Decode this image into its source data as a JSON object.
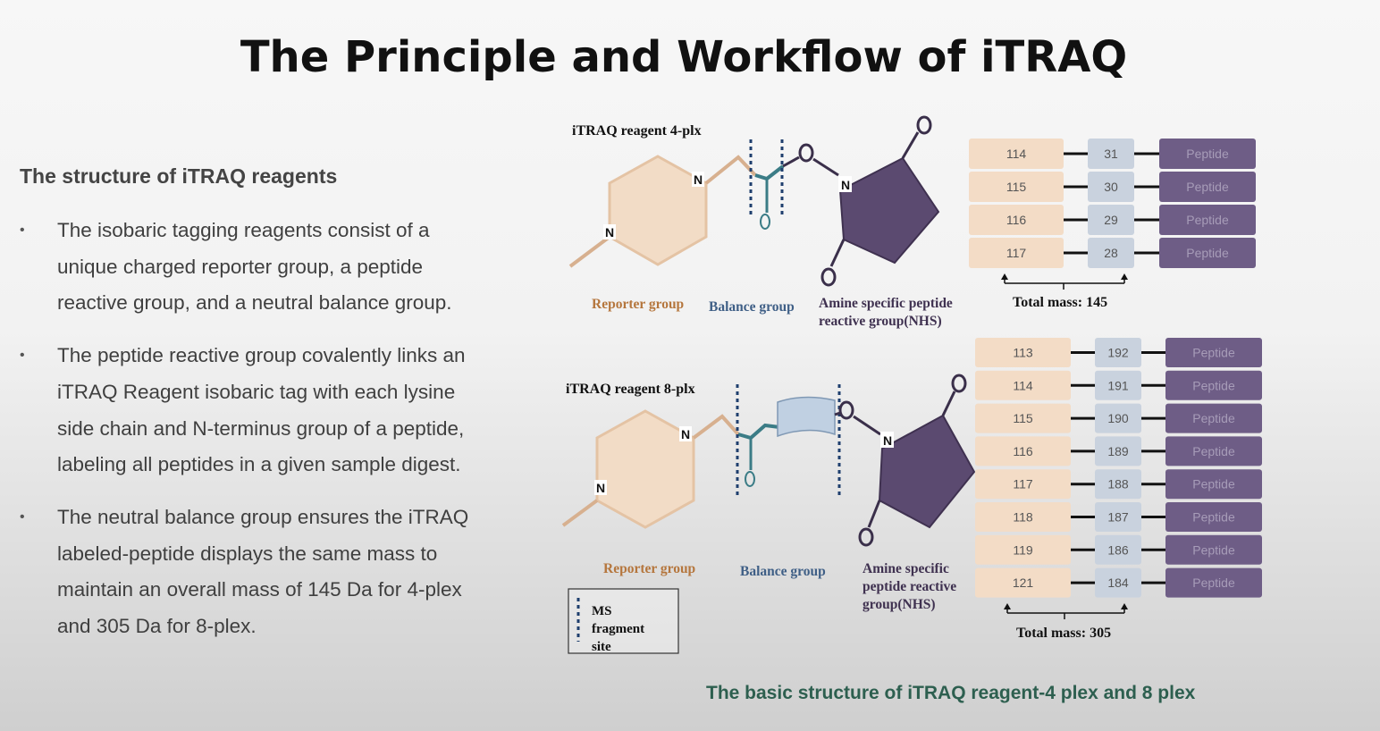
{
  "title": "The Principle and Workflow of iTRAQ",
  "section_heading": "The structure of iTRAQ reagents",
  "bullets": [
    {
      "lines": [
        "The isobaric tagging reagents consist of a",
        "unique charged reporter group, a peptide",
        "reactive group, and a neutral balance group."
      ]
    },
    {
      "lines": [
        "The peptide reactive group covalently links an",
        "iTRAQ Reagent isobaric tag with each lysine",
        "side chain and N-terminus group of a peptide,",
        "labeling all peptides in a given sample digest."
      ]
    },
    {
      "lines": [
        "The neutral balance group ensures the iTRAQ",
        "labeled-peptide displays the same mass to",
        "maintain an overall mass of 145 Da for 4-plex",
        "and 305 Da for 8-plex."
      ]
    }
  ],
  "bullet_marker": "•",
  "plex4": {
    "label": "iTRAQ  reagent 4-plx",
    "reporter_label": "Reporter group",
    "balance_label": "Balance  group",
    "amine_label_lines": [
      "Amine specific peptide",
      "reactive group(NHS)"
    ],
    "atom_N": "N",
    "atom_O": "O",
    "reporter": [
      "114",
      "115",
      "116",
      "117"
    ],
    "balance": [
      "31",
      "30",
      "29",
      "28"
    ],
    "peptide": "Peptide",
    "total_mass": "Total mass: 145"
  },
  "plex8": {
    "label": "iTRAQ  reagent 8-plx",
    "reporter_label": "Reporter group",
    "balance_label": "Balance  group",
    "amine_label_lines": [
      "Amine specific",
      "peptide reactive",
      "group(NHS)"
    ],
    "atom_N": "N",
    "atom_O": "O",
    "reporter": [
      "113",
      "114",
      "115",
      "116",
      "117",
      "118",
      "119",
      "121"
    ],
    "balance": [
      "192",
      "191",
      "190",
      "189",
      "188",
      "187",
      "186",
      "184"
    ],
    "peptide": "Peptide",
    "total_mass": "Total mass: 305"
  },
  "legend": {
    "lines": [
      "MS",
      "fragment",
      "site"
    ]
  },
  "caption": "The basic structure of iTRAQ  reagent-4 plex and 8 plex",
  "colors": {
    "reporter_fill": "#f3dcc6",
    "balance_fill": "#c9d2de",
    "peptide_fill": "#6e5d86",
    "peptide_text": "#a79cb8",
    "reporter_text": "#b5763d",
    "balance_text": "#3f5f86",
    "nhs_fill": "#5a4a6e",
    "bond_teal": "#3b7c86",
    "caption_green": "#2d5f4f"
  }
}
